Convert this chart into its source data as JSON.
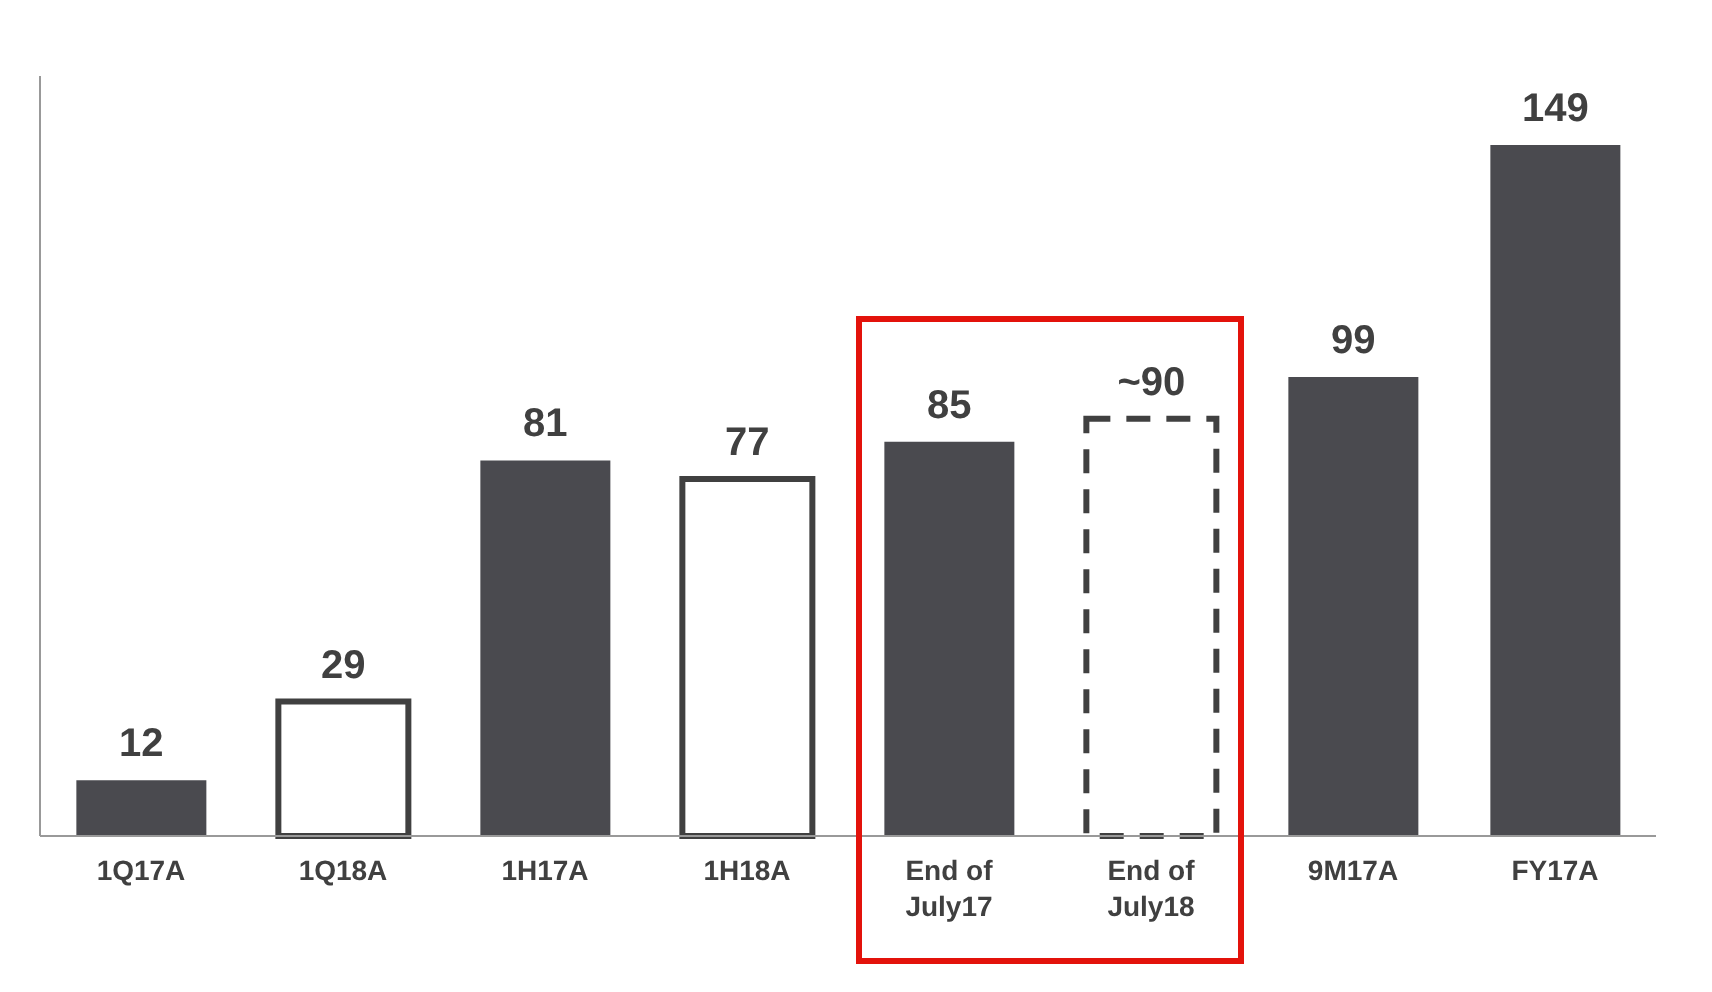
{
  "chart_data": {
    "type": "bar",
    "stacked": true,
    "categories": [
      "1Q17A",
      "1Q18A",
      "1H17A",
      "1H18A",
      "End of July17",
      "End of July18",
      "9M17A",
      "FY17A"
    ],
    "series": [
      {
        "color": "#4a4a4f",
        "values": [
          12,
          null,
          81,
          null,
          85,
          null,
          99,
          149
        ],
        "value_labels": [
          "12",
          null,
          "81",
          null,
          "85",
          null,
          "99",
          "149"
        ]
      },
      {
        "color": "#ffffff",
        "values": [
          null,
          29,
          null,
          77,
          null,
          null,
          null,
          null
        ],
        "value_labels": [
          null,
          "29",
          null,
          "77",
          null,
          null,
          null,
          null
        ]
      },
      {
        "color": "#ffffff",
        "line_style": "dashed",
        "values": [
          null,
          null,
          null,
          null,
          null,
          90,
          null,
          null
        ],
        "value_labels": [
          null,
          null,
          null,
          null,
          null,
          "~90",
          null,
          null
        ]
      }
    ],
    "tick_labels": "x"
  }
}
